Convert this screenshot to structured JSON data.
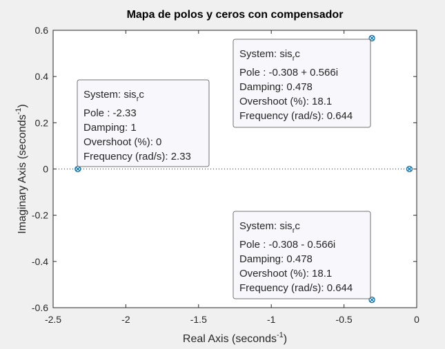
{
  "chart_data": {
    "type": "scatter",
    "title": "Mapa de polos y ceros con compensador",
    "xlabel": {
      "main": "Real Axis (seconds",
      "sup": "-1",
      "close": ")"
    },
    "ylabel": {
      "main": "Imaginary Axis (seconds",
      "sup": "-1",
      "close": ")"
    },
    "xlim": [
      -2.5,
      0
    ],
    "ylim": [
      -0.6,
      0.6
    ],
    "xticks": [
      "-2.5",
      "-2",
      "-1.5",
      "-1",
      "-0.5",
      "0"
    ],
    "yticks": [
      "0.6",
      "0.4",
      "0.2",
      "0",
      "-0.2",
      "-0.4",
      "-0.6"
    ],
    "grid": false,
    "colors": {
      "marker": "#0072BD",
      "background": "#ffffff",
      "figure": "#f0f0f0"
    },
    "points": [
      {
        "x": -2.33,
        "y": 0,
        "marker": "x"
      },
      {
        "x": -2.33,
        "y": 0,
        "marker": "o"
      },
      {
        "x": -0.308,
        "y": 0.566,
        "marker": "x"
      },
      {
        "x": -0.308,
        "y": 0.566,
        "marker": "o"
      },
      {
        "x": -0.308,
        "y": -0.566,
        "marker": "x"
      },
      {
        "x": -0.308,
        "y": -0.566,
        "marker": "o"
      },
      {
        "x": -0.05,
        "y": 0,
        "marker": "x"
      },
      {
        "x": -0.05,
        "y": 0,
        "marker": "o"
      }
    ],
    "datatips": [
      {
        "system": {
          "label": "System: sis",
          "sub": "r",
          "suffix": "c"
        },
        "lines": [
          "Pole : -2.33",
          "Damping: 1",
          "Overshoot (%): 0",
          "Frequency (rad/s): 2.33"
        ]
      },
      {
        "system": {
          "label": "System: sis",
          "sub": "r",
          "suffix": "c"
        },
        "lines": [
          "Pole : -0.308 + 0.566i",
          "Damping: 0.478",
          "Overshoot (%): 18.1",
          "Frequency (rad/s): 0.644"
        ]
      },
      {
        "system": {
          "label": "System: sis",
          "sub": "r",
          "suffix": "c"
        },
        "lines": [
          "Pole : -0.308 - 0.566i",
          "Damping: 0.478",
          "Overshoot (%): 18.1",
          "Frequency (rad/s): 0.644"
        ]
      }
    ]
  }
}
